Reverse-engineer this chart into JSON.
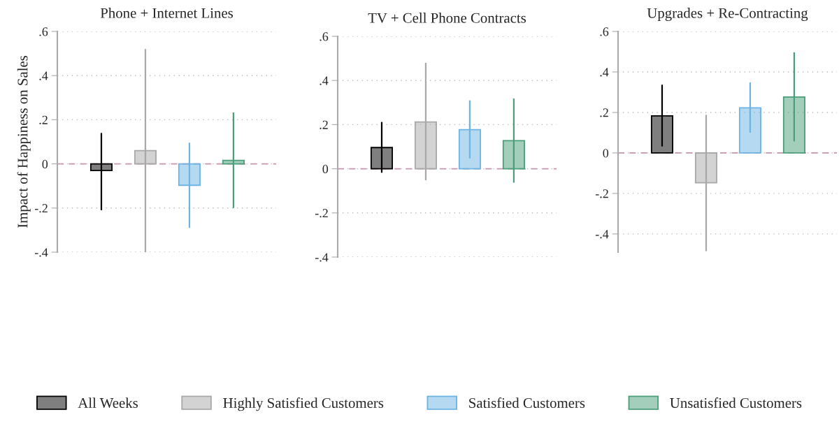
{
  "chart_data": [
    {
      "type": "bar",
      "title": "Phone + Internet Lines",
      "ylabel": "Impact of Happiness on Sales",
      "categories": [
        null,
        null,
        null,
        null
      ],
      "series": [
        {
          "name": "All Weeks",
          "color": "#000000",
          "values": [
            -0.03,
            null,
            null,
            null
          ],
          "errors": [
            [
              -0.21,
              0.14
            ],
            null,
            null,
            null
          ]
        },
        {
          "name": "Highly Satisfied Customers",
          "color": "#a8a8a8",
          "values": [
            null,
            0.06,
            null,
            null
          ],
          "errors": [
            null,
            [
              -0.4,
              0.52
            ],
            null,
            null
          ]
        },
        {
          "name": "Satisfied Customers",
          "color": "#6cb4e4",
          "values": [
            null,
            null,
            -0.097,
            null
          ],
          "errors": [
            null,
            null,
            [
              -0.29,
              0.096
            ],
            null
          ]
        },
        {
          "name": "Unsatisfied Customers",
          "color": "#4a9e7a",
          "values": [
            null,
            null,
            null,
            0.016
          ],
          "errors": [
            null,
            null,
            null,
            [
              -0.2,
              0.233
            ]
          ]
        }
      ],
      "ylim": [
        -0.4,
        0.6
      ],
      "yticks": [
        {
          "value": 0.6,
          "label": ".6"
        },
        {
          "value": 0.4,
          "label": ".4"
        },
        {
          "value": 0.2,
          "label": ".2"
        },
        0,
        {
          "value": -0.2,
          "label": "-.2"
        },
        {
          "value": -0.4,
          "label": "-.4"
        }
      ],
      "ref_lines": [
        {
          "axis": "y",
          "value": 0,
          "color": "#c994b0",
          "line_style": "dashed"
        }
      ],
      "grid": "y",
      "legend": "bottom",
      "tick_labels": "y"
    },
    {
      "type": "bar",
      "title": "TV + Cell Phone Contracts",
      "categories": [
        null,
        null,
        null,
        null
      ],
      "series": [
        {
          "color": "#000000",
          "values": [
            0.096,
            null,
            null,
            null
          ],
          "errors": [
            [
              -0.018,
              0.212
            ],
            null,
            null,
            null
          ]
        },
        {
          "color": "#a8a8a8",
          "values": [
            null,
            0.212,
            null,
            null
          ],
          "errors": [
            null,
            [
              -0.052,
              0.48
            ],
            null,
            null
          ]
        },
        {
          "color": "#6cb4e4",
          "values": [
            null,
            null,
            0.177,
            null
          ],
          "errors": [
            null,
            null,
            [
              0.047,
              0.31
            ],
            null
          ]
        },
        {
          "color": "#4a9e7a",
          "values": [
            null,
            null,
            null,
            0.127
          ],
          "errors": [
            null,
            null,
            null,
            [
              -0.063,
              0.318
            ]
          ]
        }
      ],
      "ylim": [
        -0.4,
        0.6
      ],
      "yticks": [
        {
          "value": 0.6,
          "label": ".6"
        },
        {
          "value": 0.4,
          "label": ".4"
        },
        {
          "value": 0.2,
          "label": ".2"
        },
        0,
        {
          "value": -0.2,
          "label": "-.2"
        },
        {
          "value": -0.4,
          "label": "-.4"
        }
      ],
      "ref_lines": [
        {
          "axis": "y",
          "value": 0,
          "color": "#c994b0",
          "line_style": "dashed"
        }
      ],
      "grid": "y",
      "tick_labels": "y"
    },
    {
      "type": "bar",
      "title": "Upgrades + Re-Contracting",
      "categories": [
        null,
        null,
        null,
        null
      ],
      "series": [
        {
          "color": "#000000",
          "values": [
            0.183,
            null,
            null,
            null
          ],
          "errors": [
            [
              0.032,
              0.337
            ],
            null,
            null,
            null
          ]
        },
        {
          "color": "#a8a8a8",
          "values": [
            null,
            -0.147,
            null,
            null
          ],
          "errors": [
            null,
            [
              -0.485,
              0.188
            ],
            null,
            null
          ]
        },
        {
          "color": "#6cb4e4",
          "values": [
            null,
            null,
            0.223,
            null
          ],
          "errors": [
            null,
            null,
            [
              0.1,
              0.348
            ],
            null
          ]
        },
        {
          "color": "#4a9e7a",
          "values": [
            null,
            null,
            null,
            0.276
          ],
          "errors": [
            null,
            null,
            null,
            [
              0.057,
              0.497
            ]
          ]
        }
      ],
      "ylim": [
        -0.49,
        0.6
      ],
      "yticks": [
        {
          "value": 0.6,
          "label": ".6"
        },
        {
          "value": 0.4,
          "label": ".4"
        },
        {
          "value": 0.2,
          "label": ".2"
        },
        0,
        {
          "value": -0.2,
          "label": "-.2"
        },
        {
          "value": -0.4,
          "label": "-.4"
        }
      ],
      "ref_lines": [
        {
          "axis": "y",
          "value": 0,
          "color": "#c994b0",
          "line_style": "dashed"
        }
      ],
      "grid": "y",
      "tick_labels": "y"
    }
  ]
}
